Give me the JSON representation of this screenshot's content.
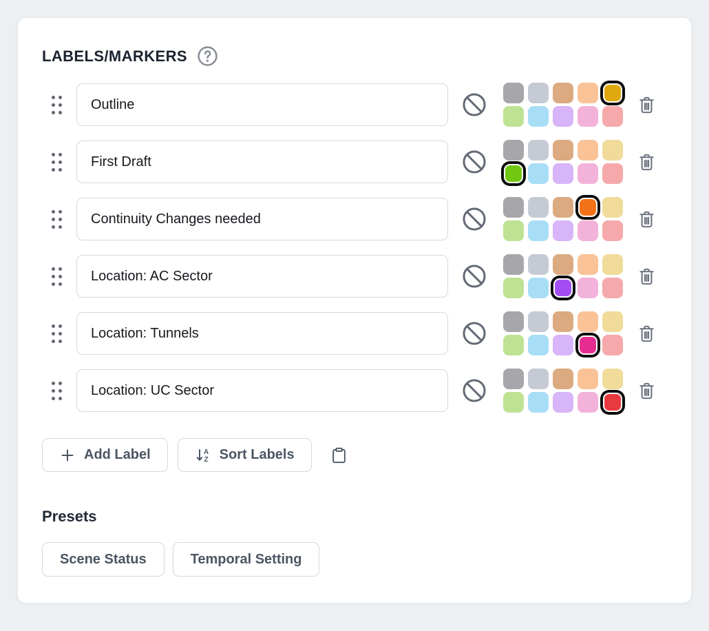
{
  "header": {
    "title": "LABELS/MARKERS",
    "help_icon": "question-mark-circle-icon"
  },
  "palette": {
    "muted": [
      "#a6a6ab",
      "#c5cad4",
      "#dbaa80",
      "#fac397",
      "#f1db9a",
      "#bee294",
      "#a8ddf6",
      "#d8b4f8",
      "#f3b2d9",
      "#f5a9ab"
    ],
    "selected_ring_color": "#0b0b0b"
  },
  "labels": [
    {
      "name": "Outline",
      "selected_index": 4,
      "selected_color": "#e0a80f"
    },
    {
      "name": "First Draft",
      "selected_index": 5,
      "selected_color": "#72c713"
    },
    {
      "name": "Continuity Changes needed",
      "selected_index": 3,
      "selected_color": "#f37217"
    },
    {
      "name": "Location: AC Sector",
      "selected_index": 7,
      "selected_color": "#a34ef5"
    },
    {
      "name": "Location: Tunnels",
      "selected_index": 8,
      "selected_color": "#e52c91"
    },
    {
      "name": "Location: UC Sector",
      "selected_index": 9,
      "selected_color": "#e8393f"
    }
  ],
  "row_icons": {
    "drag_handle": "drag-handle-icon",
    "no_color": "ban-icon",
    "delete": "trash-icon"
  },
  "actions": {
    "add_label": "Add Label",
    "sort_labels": "Sort Labels",
    "paste_icon": "clipboard-icon"
  },
  "presets": {
    "heading": "Presets",
    "items": [
      "Scene Status",
      "Temporal Setting"
    ]
  }
}
